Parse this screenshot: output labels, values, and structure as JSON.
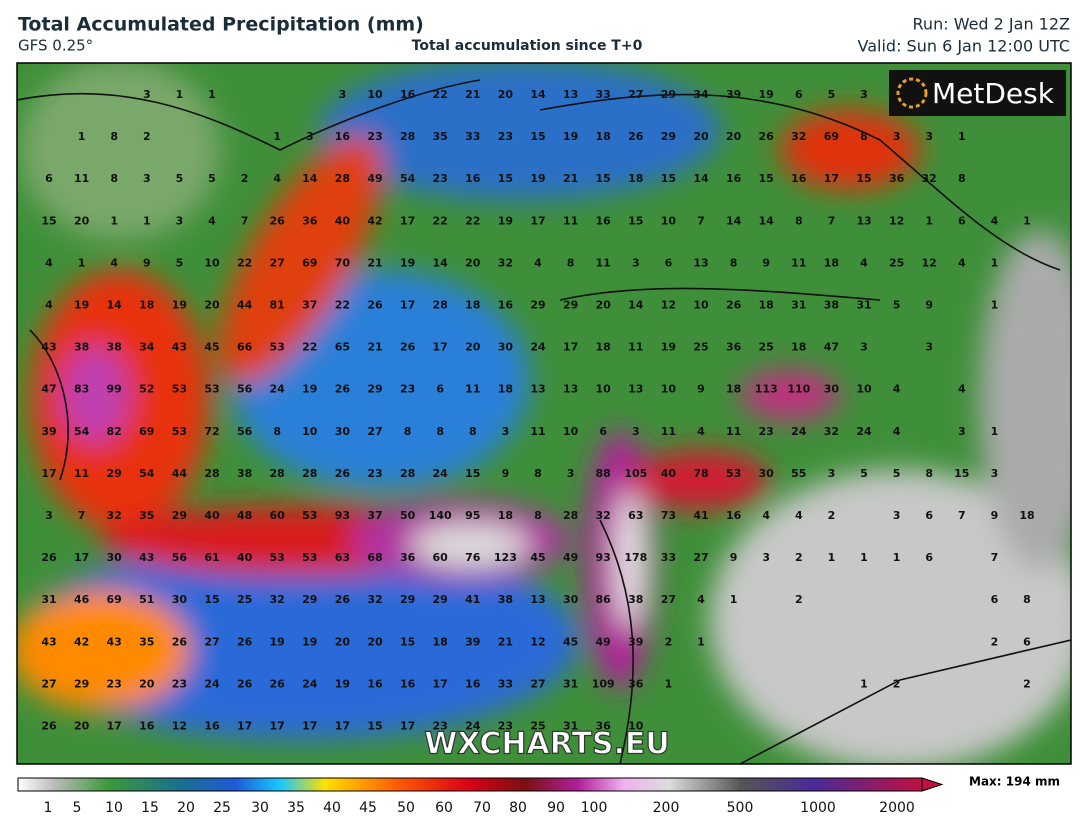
{
  "header": {
    "title": "Total Accumulated Precipitation (mm)",
    "model": "GFS 0.25°",
    "subtitle": "Total accumulation since T+0",
    "run": "Run: Wed 2 Jan 12Z",
    "valid": "Valid: Sun 6 Jan 12:00 UTC"
  },
  "logo": "MetDesk",
  "watermark": "WXCHARTS.EU",
  "colorbar": {
    "labels": [
      "1",
      "5",
      "10",
      "15",
      "20",
      "25",
      "30",
      "35",
      "40",
      "45",
      "50",
      "60",
      "70",
      "80",
      "90",
      "100",
      "200",
      "500",
      "1000",
      "2000"
    ],
    "max_label": "Max: 194 mm"
  },
  "grid_values": [
    [
      null,
      null,
      null,
      3,
      1,
      1,
      null,
      null,
      null,
      3,
      10,
      16,
      22,
      21,
      20,
      14,
      13,
      33,
      27,
      29,
      34,
      39,
      19,
      6,
      5,
      3,
      null,
      null,
      null,
      null,
      null
    ],
    [
      null,
      1,
      8,
      2,
      null,
      null,
      null,
      1,
      3,
      16,
      23,
      28,
      35,
      33,
      23,
      15,
      19,
      18,
      26,
      29,
      20,
      20,
      26,
      32,
      69,
      8,
      3,
      3,
      1,
      null,
      null
    ],
    [
      6,
      11,
      8,
      3,
      5,
      5,
      2,
      4,
      14,
      28,
      49,
      54,
      23,
      16,
      15,
      19,
      21,
      15,
      18,
      15,
      14,
      16,
      15,
      16,
      17,
      15,
      36,
      32,
      8,
      null,
      null
    ],
    [
      15,
      20,
      1,
      1,
      3,
      4,
      7,
      26,
      36,
      40,
      42,
      17,
      22,
      22,
      19,
      17,
      11,
      16,
      15,
      10,
      7,
      14,
      14,
      8,
      7,
      13,
      12,
      1,
      6,
      4,
      1
    ],
    [
      4,
      1,
      4,
      9,
      5,
      10,
      22,
      27,
      69,
      70,
      21,
      19,
      14,
      20,
      32,
      4,
      8,
      11,
      3,
      6,
      13,
      8,
      9,
      11,
      18,
      4,
      25,
      12,
      4,
      1,
      null
    ],
    [
      4,
      19,
      14,
      18,
      19,
      20,
      44,
      81,
      37,
      22,
      26,
      17,
      28,
      18,
      16,
      29,
      29,
      20,
      14,
      12,
      10,
      26,
      18,
      31,
      38,
      31,
      5,
      9,
      null,
      1,
      null
    ],
    [
      43,
      38,
      38,
      34,
      43,
      45,
      66,
      53,
      22,
      65,
      21,
      26,
      17,
      20,
      30,
      24,
      17,
      18,
      11,
      19,
      25,
      36,
      25,
      18,
      47,
      3,
      null,
      3,
      null,
      null,
      null
    ],
    [
      47,
      83,
      99,
      52,
      53,
      53,
      56,
      24,
      19,
      26,
      29,
      23,
      6,
      11,
      18,
      13,
      13,
      10,
      13,
      10,
      9,
      18,
      113,
      110,
      30,
      10,
      4,
      null,
      4,
      null,
      null
    ],
    [
      39,
      54,
      82,
      69,
      53,
      72,
      56,
      8,
      10,
      30,
      27,
      8,
      8,
      8,
      3,
      11,
      10,
      6,
      3,
      11,
      4,
      11,
      23,
      24,
      32,
      24,
      4,
      null,
      3,
      1,
      null
    ],
    [
      17,
      11,
      29,
      54,
      44,
      28,
      38,
      28,
      28,
      26,
      23,
      28,
      24,
      15,
      9,
      8,
      3,
      88,
      105,
      40,
      78,
      53,
      30,
      55,
      3,
      5,
      5,
      8,
      15,
      3,
      null
    ],
    [
      3,
      7,
      32,
      35,
      29,
      40,
      48,
      60,
      53,
      93,
      37,
      50,
      140,
      95,
      18,
      8,
      28,
      32,
      63,
      73,
      41,
      16,
      4,
      4,
      2,
      null,
      3,
      6,
      7,
      9,
      18
    ],
    [
      26,
      17,
      30,
      43,
      56,
      61,
      40,
      53,
      53,
      63,
      68,
      36,
      60,
      76,
      123,
      45,
      49,
      93,
      178,
      33,
      27,
      9,
      3,
      2,
      1,
      1,
      1,
      6,
      null,
      7,
      null
    ],
    [
      31,
      46,
      69,
      51,
      30,
      15,
      25,
      32,
      29,
      26,
      32,
      29,
      29,
      41,
      38,
      13,
      30,
      86,
      38,
      27,
      4,
      1,
      null,
      2,
      null,
      null,
      null,
      null,
      null,
      6,
      8
    ],
    [
      43,
      42,
      43,
      35,
      26,
      27,
      26,
      19,
      19,
      20,
      20,
      15,
      18,
      39,
      21,
      12,
      45,
      49,
      39,
      2,
      1,
      null,
      null,
      null,
      null,
      null,
      null,
      null,
      null,
      2,
      6
    ],
    [
      27,
      29,
      23,
      20,
      23,
      24,
      26,
      26,
      24,
      19,
      16,
      16,
      17,
      16,
      33,
      27,
      31,
      109,
      36,
      1,
      null,
      null,
      null,
      null,
      null,
      1,
      2,
      null,
      null,
      null,
      2
    ],
    [
      26,
      20,
      17,
      16,
      12,
      16,
      17,
      17,
      17,
      17,
      15,
      17,
      23,
      24,
      23,
      25,
      31,
      36,
      10,
      null,
      null,
      null,
      null,
      null,
      null,
      null,
      null,
      null,
      null,
      null,
      null
    ]
  ]
}
